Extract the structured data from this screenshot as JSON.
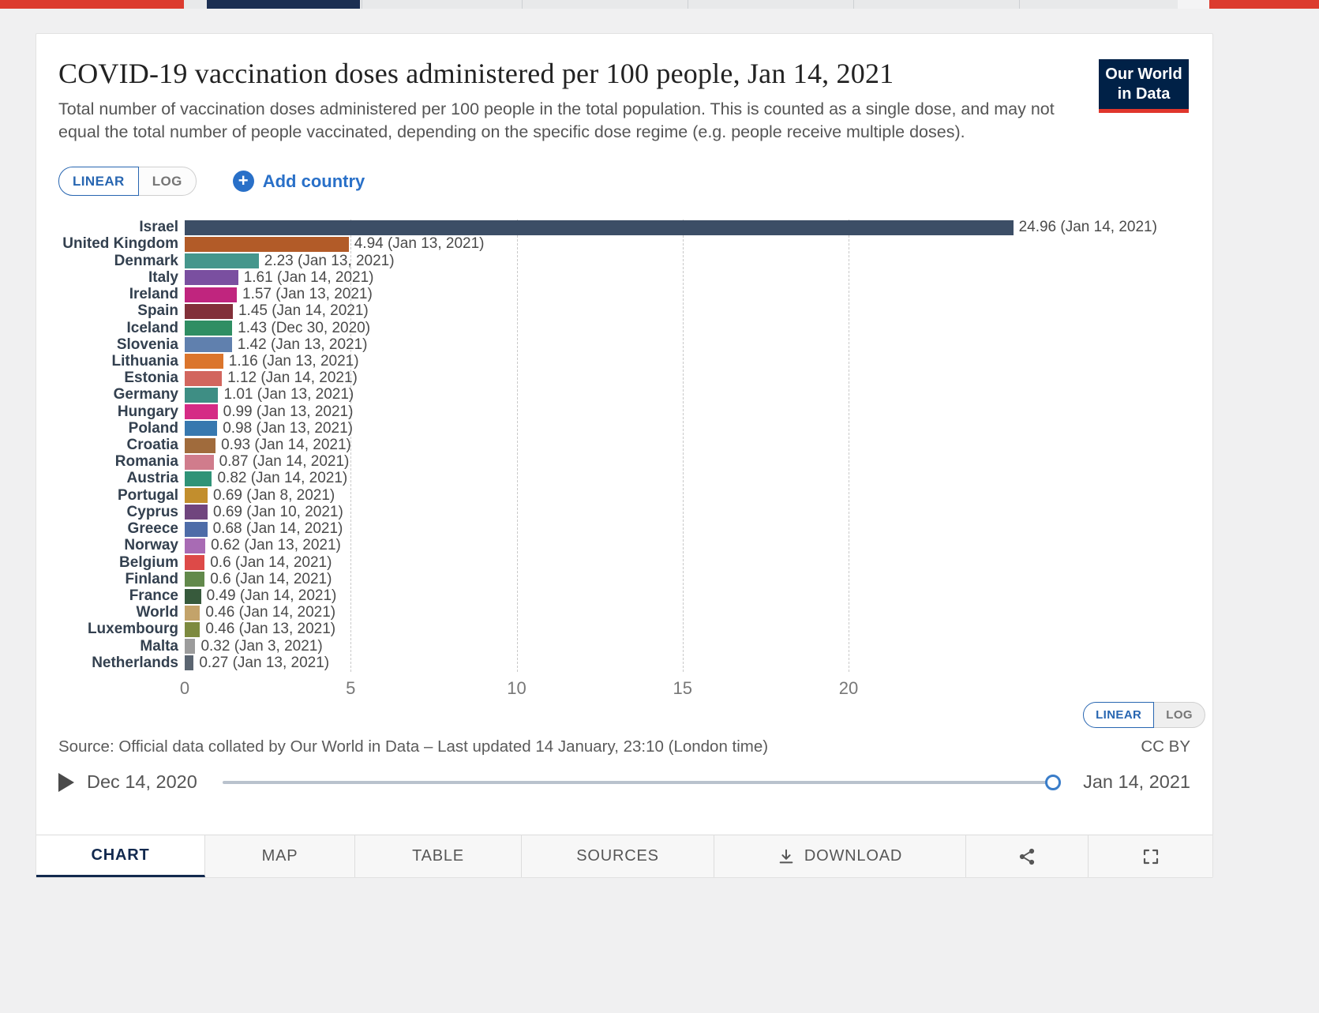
{
  "colors": {
    "owid_navy": "#002147",
    "owid_red": "#e0362c",
    "accent_blue": "#2970c8",
    "browser_strip_red": "#dc3b2f",
    "browser_strip_navy": "#1c2f52"
  },
  "header": {
    "title": "COVID-19 vaccination doses administered per 100 people, Jan 14, 2021",
    "subtitle": "Total number of vaccination doses administered per 100 people in the total population. This is counted as a single dose, and may not equal the total number of people vaccinated, depending on the specific dose regime (e.g. people receive multiple doses).",
    "logo": {
      "line1": "Our World",
      "line2": "in Data"
    }
  },
  "controls": {
    "scale_top": {
      "linear": "LINEAR",
      "log": "LOG",
      "active": "LINEAR"
    },
    "add_country": "Add country",
    "add_icon_glyph": "+",
    "scale_bottom": {
      "linear": "LINEAR",
      "log": "LOG",
      "active": "LINEAR"
    }
  },
  "chart_data": {
    "type": "bar",
    "orientation": "horizontal",
    "title": "COVID-19 vaccination doses administered per 100 people, Jan 14, 2021",
    "xlabel": "",
    "ylabel": "",
    "xlim": [
      0,
      25.5
    ],
    "x_ticks": [
      0,
      5,
      10,
      15,
      20
    ],
    "grid": "dashed-vertical",
    "series": [
      {
        "country": "Israel",
        "value": 24.96,
        "date": "Jan 14, 2021",
        "color": "#3C4E66"
      },
      {
        "country": "United Kingdom",
        "value": 4.94,
        "date": "Jan 13, 2021",
        "color": "#B25B28"
      },
      {
        "country": "Denmark",
        "value": 2.23,
        "date": "Jan 13, 2021",
        "color": "#45968C"
      },
      {
        "country": "Italy",
        "value": 1.61,
        "date": "Jan 14, 2021",
        "color": "#7A4FA0"
      },
      {
        "country": "Ireland",
        "value": 1.57,
        "date": "Jan 13, 2021",
        "color": "#C0257E"
      },
      {
        "country": "Spain",
        "value": 1.45,
        "date": "Jan 14, 2021",
        "color": "#823039"
      },
      {
        "country": "Iceland",
        "value": 1.43,
        "date": "Dec 30, 2020",
        "color": "#2F8E63"
      },
      {
        "country": "Slovenia",
        "value": 1.42,
        "date": "Jan 13, 2021",
        "color": "#6080AE"
      },
      {
        "country": "Lithuania",
        "value": 1.16,
        "date": "Jan 13, 2021",
        "color": "#DB752C"
      },
      {
        "country": "Estonia",
        "value": 1.12,
        "date": "Jan 14, 2021",
        "color": "#D2665E"
      },
      {
        "country": "Germany",
        "value": 1.01,
        "date": "Jan 13, 2021",
        "color": "#3E8E84"
      },
      {
        "country": "Hungary",
        "value": 0.99,
        "date": "Jan 13, 2021",
        "color": "#D52B85"
      },
      {
        "country": "Poland",
        "value": 0.98,
        "date": "Jan 13, 2021",
        "color": "#3778AF"
      },
      {
        "country": "Croatia",
        "value": 0.93,
        "date": "Jan 14, 2021",
        "color": "#A06B3C"
      },
      {
        "country": "Romania",
        "value": 0.87,
        "date": "Jan 14, 2021",
        "color": "#D07C8C"
      },
      {
        "country": "Austria",
        "value": 0.82,
        "date": "Jan 14, 2021",
        "color": "#2F9377"
      },
      {
        "country": "Portugal",
        "value": 0.69,
        "date": "Jan 8, 2021",
        "color": "#C28E2D"
      },
      {
        "country": "Cyprus",
        "value": 0.69,
        "date": "Jan 10, 2021",
        "color": "#70457E"
      },
      {
        "country": "Greece",
        "value": 0.68,
        "date": "Jan 14, 2021",
        "color": "#4E6CA8"
      },
      {
        "country": "Norway",
        "value": 0.62,
        "date": "Jan 13, 2021",
        "color": "#A86BB4"
      },
      {
        "country": "Belgium",
        "value": 0.6,
        "date": "Jan 14, 2021",
        "color": "#DD4A48"
      },
      {
        "country": "Finland",
        "value": 0.6,
        "date": "Jan 14, 2021",
        "color": "#62894B"
      },
      {
        "country": "France",
        "value": 0.49,
        "date": "Jan 14, 2021",
        "color": "#375A3C"
      },
      {
        "country": "World",
        "value": 0.46,
        "date": "Jan 14, 2021",
        "color": "#C3A36A"
      },
      {
        "country": "Luxembourg",
        "value": 0.46,
        "date": "Jan 13, 2021",
        "color": "#7D8A3F"
      },
      {
        "country": "Malta",
        "value": 0.32,
        "date": "Jan 3, 2021",
        "color": "#9C9C9C"
      },
      {
        "country": "Netherlands",
        "value": 0.27,
        "date": "Jan 13, 2021",
        "color": "#5B6571"
      }
    ]
  },
  "footer": {
    "source": "Source: Official data collated by Our World in Data – Last updated 14 January, 23:10 (London time)",
    "license": "CC BY",
    "timeline": {
      "start": "Dec 14, 2020",
      "end": "Jan 14, 2021"
    },
    "tabs": [
      {
        "label": "CHART",
        "active": true
      },
      {
        "label": "MAP"
      },
      {
        "label": "TABLE"
      },
      {
        "label": "SOURCES"
      },
      {
        "label": "DOWNLOAD",
        "icon": "download-icon"
      },
      {
        "label": "",
        "icon": "share-icon"
      },
      {
        "label": "",
        "icon": "fullscreen-icon"
      }
    ]
  }
}
